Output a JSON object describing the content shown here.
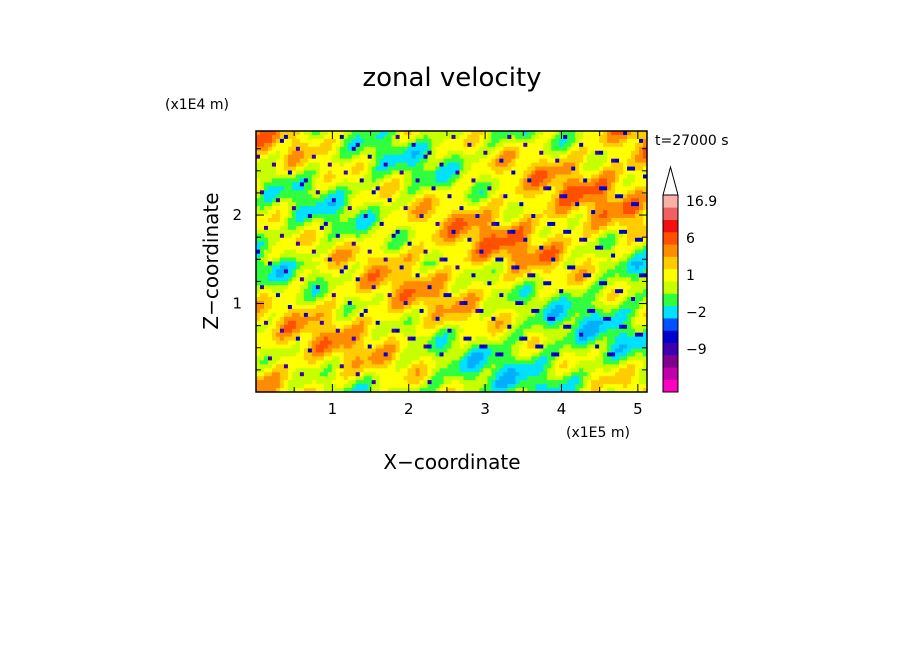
{
  "chart_data": {
    "type": "heatmap",
    "title": "zonal velocity",
    "xlabel": "X−coordinate",
    "ylabel": "Z−coordinate",
    "x_scale_label": "(x1E5 m)",
    "y_scale_label": "(x1E4 m)",
    "time_label": "t=27000 s",
    "xlim": [
      0,
      5.12
    ],
    "ylim": [
      0,
      2.95
    ],
    "x_ticks": [
      {
        "value": 1,
        "label": "1"
      },
      {
        "value": 2,
        "label": "2"
      },
      {
        "value": 3,
        "label": "3"
      },
      {
        "value": 4,
        "label": "4"
      },
      {
        "value": 5,
        "label": "5"
      }
    ],
    "y_ticks": [
      {
        "value": 1,
        "label": "1"
      },
      {
        "value": 2,
        "label": "2"
      }
    ],
    "colorbar": {
      "levels": [
        {
          "color": "#ff00c0"
        },
        {
          "color": "#c000a8"
        },
        {
          "color": "#800090"
        },
        {
          "color": "#3c00b0"
        },
        {
          "color": "#0000cc"
        },
        {
          "color": "#0050ff"
        },
        {
          "color": "#00e0ff"
        },
        {
          "color": "#30ff40"
        },
        {
          "color": "#c8ff00"
        },
        {
          "color": "#ffff00"
        },
        {
          "color": "#ffcc00"
        },
        {
          "color": "#ff8c00"
        },
        {
          "color": "#ff5000"
        },
        {
          "color": "#f01010"
        },
        {
          "color": "#f06060"
        },
        {
          "color": "#f8b0a8"
        }
      ],
      "labels": [
        {
          "text": "16.9",
          "level": 15
        },
        {
          "text": "6",
          "level": 12
        },
        {
          "text": "1",
          "level": 9
        },
        {
          "text": "−2",
          "level": 6
        },
        {
          "text": "−9",
          "level": 3
        }
      ],
      "extend_max": true
    },
    "field_palette": [
      "#00b0ff",
      "#00e0ff",
      "#30ff40",
      "#c8ff00",
      "#ffff00",
      "#ffcc00",
      "#ff8c00",
      "#ff5000",
      "#0000cc",
      "#3c00b0"
    ]
  }
}
